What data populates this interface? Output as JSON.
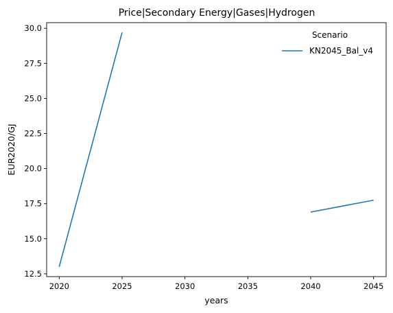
{
  "chart_data": {
    "type": "line",
    "title": "Price|Secondary Energy|Gases|Hydrogen",
    "xlabel": "years",
    "ylabel": "EUR2020/GJ",
    "xlim": [
      2019,
      2046
    ],
    "ylim": [
      12.3,
      30.4
    ],
    "xticks": [
      2020,
      2025,
      2030,
      2035,
      2040,
      2045
    ],
    "yticks": [
      12.5,
      15.0,
      17.5,
      20.0,
      22.5,
      25.0,
      27.5,
      30.0
    ],
    "ytick_labels": [
      "12.5",
      "15.0",
      "17.5",
      "20.0",
      "22.5",
      "25.0",
      "27.5",
      "30.0"
    ],
    "grid": false,
    "legend": {
      "title": "Scenario",
      "placement": "top-right"
    },
    "series": [
      {
        "name": "KN2045_Bal_v4",
        "color": "#1f77b4",
        "segments": [
          [
            [
              2020,
              13.0
            ],
            [
              2025,
              29.7
            ]
          ],
          [
            [
              2040,
              16.9
            ],
            [
              2045,
              17.75
            ]
          ]
        ]
      }
    ]
  }
}
